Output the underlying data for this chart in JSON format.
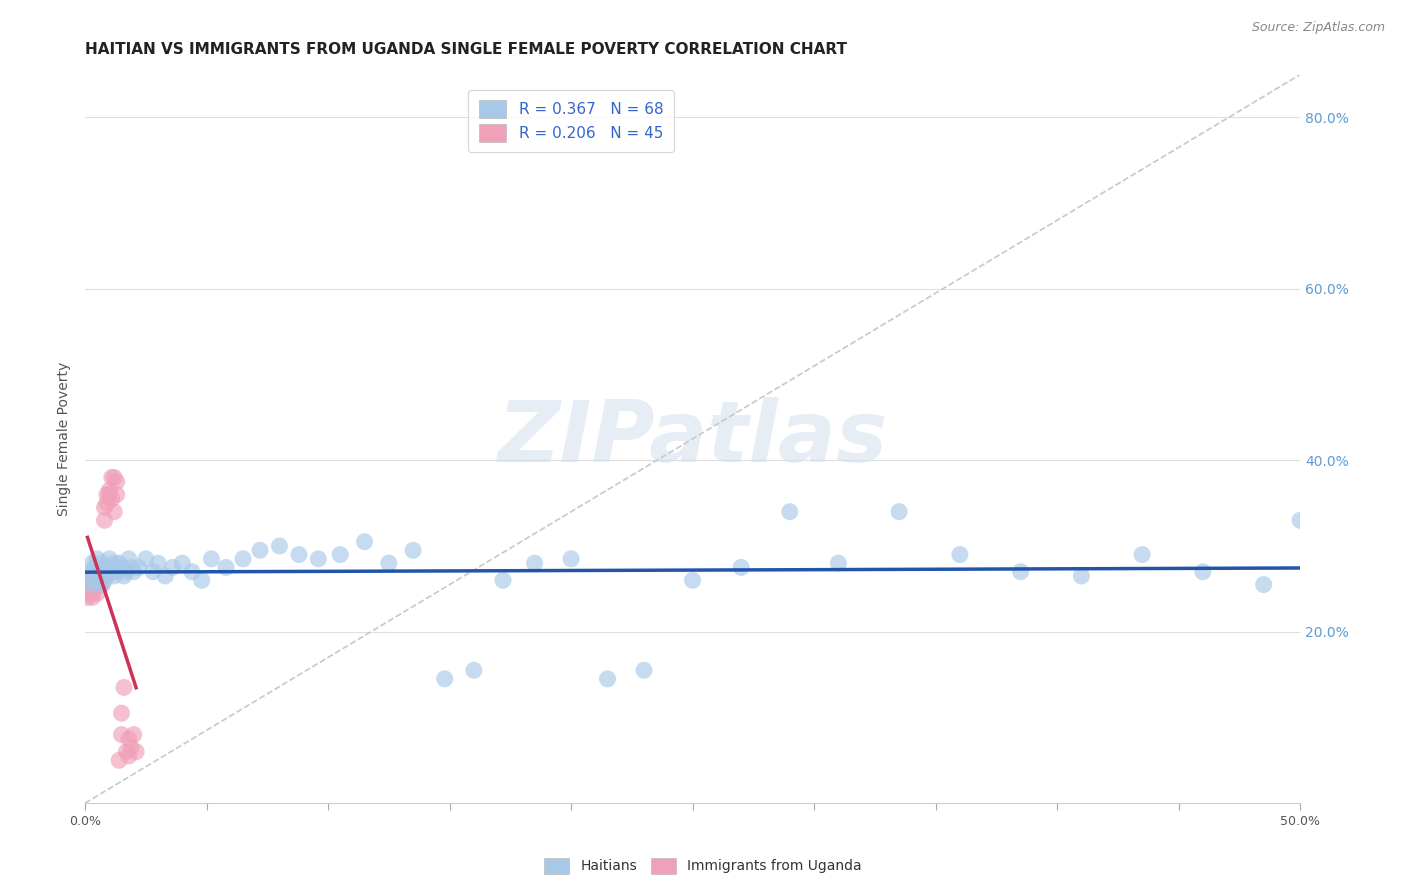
{
  "title": "HAITIAN VS IMMIGRANTS FROM UGANDA SINGLE FEMALE POVERTY CORRELATION CHART",
  "source": "Source: ZipAtlas.com",
  "ylabel": "Single Female Poverty",
  "xlim": [
    0.0,
    0.5
  ],
  "ylim": [
    0.0,
    0.85
  ],
  "xticks": [
    0.0,
    0.05,
    0.1,
    0.15,
    0.2,
    0.25,
    0.3,
    0.35,
    0.4,
    0.45,
    0.5
  ],
  "yticks_right": [
    0.2,
    0.4,
    0.6,
    0.8
  ],
  "ytick_labels_right": [
    "20.0%",
    "40.0%",
    "60.0%",
    "80.0%"
  ],
  "xtick_labels_show": [
    "0.0%",
    "",
    "",
    "",
    "",
    "",
    "",
    "",
    "",
    "",
    "50.0%"
  ],
  "legend_labels": [
    "R = 0.367   N = 68",
    "R = 0.206   N = 45"
  ],
  "haitians_color": "#a8c8e8",
  "uganda_color": "#f0a0b8",
  "haitians_line_color": "#2255aa",
  "uganda_line_color": "#cc3355",
  "diagonal_color": "#c8c8c8",
  "grid_color": "#e0e0e0",
  "watermark": "ZIPatlas",
  "haitians_x": [
    0.001,
    0.002,
    0.003,
    0.003,
    0.004,
    0.004,
    0.005,
    0.005,
    0.006,
    0.006,
    0.007,
    0.007,
    0.008,
    0.008,
    0.009,
    0.009,
    0.01,
    0.01,
    0.011,
    0.012,
    0.012,
    0.013,
    0.014,
    0.015,
    0.016,
    0.017,
    0.018,
    0.019,
    0.02,
    0.022,
    0.025,
    0.028,
    0.03,
    0.033,
    0.036,
    0.04,
    0.044,
    0.048,
    0.052,
    0.058,
    0.065,
    0.072,
    0.08,
    0.088,
    0.096,
    0.105,
    0.115,
    0.125,
    0.135,
    0.148,
    0.16,
    0.172,
    0.185,
    0.2,
    0.215,
    0.23,
    0.25,
    0.27,
    0.29,
    0.31,
    0.335,
    0.36,
    0.385,
    0.41,
    0.435,
    0.46,
    0.485,
    0.5
  ],
  "haitians_y": [
    0.26,
    0.27,
    0.255,
    0.28,
    0.265,
    0.275,
    0.26,
    0.285,
    0.27,
    0.265,
    0.255,
    0.28,
    0.26,
    0.275,
    0.265,
    0.275,
    0.27,
    0.285,
    0.275,
    0.28,
    0.265,
    0.27,
    0.28,
    0.275,
    0.265,
    0.27,
    0.285,
    0.275,
    0.27,
    0.275,
    0.285,
    0.27,
    0.28,
    0.265,
    0.275,
    0.28,
    0.27,
    0.26,
    0.285,
    0.275,
    0.285,
    0.295,
    0.3,
    0.29,
    0.285,
    0.29,
    0.305,
    0.28,
    0.295,
    0.145,
    0.155,
    0.26,
    0.28,
    0.285,
    0.145,
    0.155,
    0.26,
    0.275,
    0.34,
    0.28,
    0.34,
    0.29,
    0.27,
    0.265,
    0.29,
    0.27,
    0.255,
    0.33
  ],
  "uganda_x": [
    0.001,
    0.001,
    0.001,
    0.002,
    0.002,
    0.002,
    0.002,
    0.003,
    0.003,
    0.003,
    0.003,
    0.004,
    0.004,
    0.004,
    0.005,
    0.005,
    0.005,
    0.006,
    0.006,
    0.006,
    0.007,
    0.007,
    0.007,
    0.008,
    0.008,
    0.009,
    0.009,
    0.01,
    0.01,
    0.011,
    0.011,
    0.012,
    0.012,
    0.013,
    0.013,
    0.014,
    0.015,
    0.015,
    0.016,
    0.017,
    0.018,
    0.018,
    0.019,
    0.02,
    0.021
  ],
  "uganda_y": [
    0.24,
    0.25,
    0.26,
    0.245,
    0.255,
    0.265,
    0.25,
    0.24,
    0.255,
    0.265,
    0.245,
    0.25,
    0.26,
    0.265,
    0.255,
    0.265,
    0.245,
    0.26,
    0.27,
    0.255,
    0.265,
    0.255,
    0.265,
    0.33,
    0.345,
    0.35,
    0.36,
    0.36,
    0.365,
    0.355,
    0.38,
    0.34,
    0.38,
    0.36,
    0.375,
    0.05,
    0.08,
    0.105,
    0.135,
    0.06,
    0.055,
    0.075,
    0.065,
    0.08,
    0.06
  ],
  "title_fontsize": 11,
  "axis_fontsize": 10,
  "tick_fontsize": 9,
  "legend_fontsize": 11
}
